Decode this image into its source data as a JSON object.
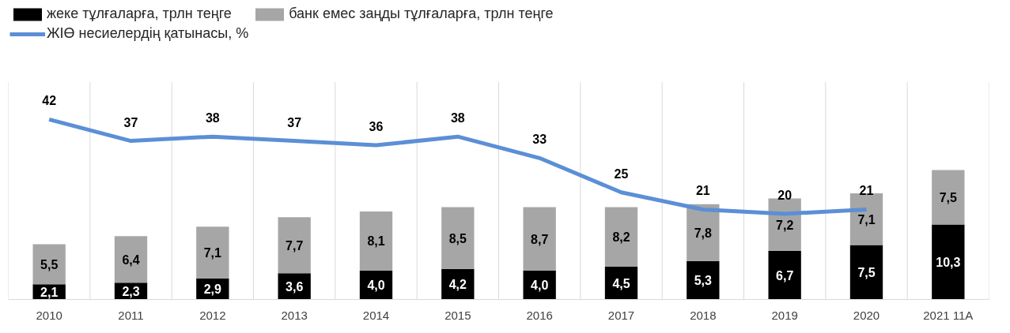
{
  "chart_data": {
    "type": "bar",
    "stacked": true,
    "tick_labels": "x",
    "grid": "x",
    "legend": "top",
    "categories": [
      "2010",
      "2011",
      "2012",
      "2013",
      "2014",
      "2015",
      "2016",
      "2017",
      "2018",
      "2019",
      "2020",
      "2021 11А"
    ],
    "series": [
      {
        "name": "жеке тұлғаларға, трлн теңге",
        "color": "#000000",
        "values": [
          2.1,
          2.3,
          2.9,
          3.6,
          4.0,
          4.2,
          4.0,
          4.5,
          5.3,
          6.7,
          7.5,
          10.3
        ],
        "value_labels": [
          "2,1",
          "2,3",
          "2,9",
          "3,6",
          "4,0",
          "4,2",
          "4,0",
          "4,5",
          "5,3",
          "6,7",
          "7,5",
          "10,3"
        ]
      },
      {
        "name": "банк емес заңды тұлғаларға, трлн теңге",
        "color": "#a6a6a6",
        "values": [
          5.5,
          6.4,
          7.1,
          7.7,
          8.1,
          8.5,
          8.7,
          8.2,
          7.8,
          7.2,
          7.1,
          7.5
        ],
        "value_labels": [
          "5,5",
          "6,4",
          "7,1",
          "7,7",
          "8,1",
          "8,5",
          "8,7",
          "8,2",
          "7,8",
          "7,2",
          "7,1",
          "7,5"
        ]
      },
      {
        "name": "ЖІӨ несиелердің қатынасы, %",
        "color": "#5b8fd6",
        "type": "line",
        "axis": "y2",
        "values": [
          42,
          37,
          38,
          37,
          36,
          38,
          33,
          25,
          21,
          20,
          21,
          null
        ],
        "value_labels": [
          "42",
          "37",
          "38",
          "37",
          "36",
          "38",
          "33",
          "25",
          "21",
          "20",
          "21",
          null
        ]
      }
    ]
  }
}
